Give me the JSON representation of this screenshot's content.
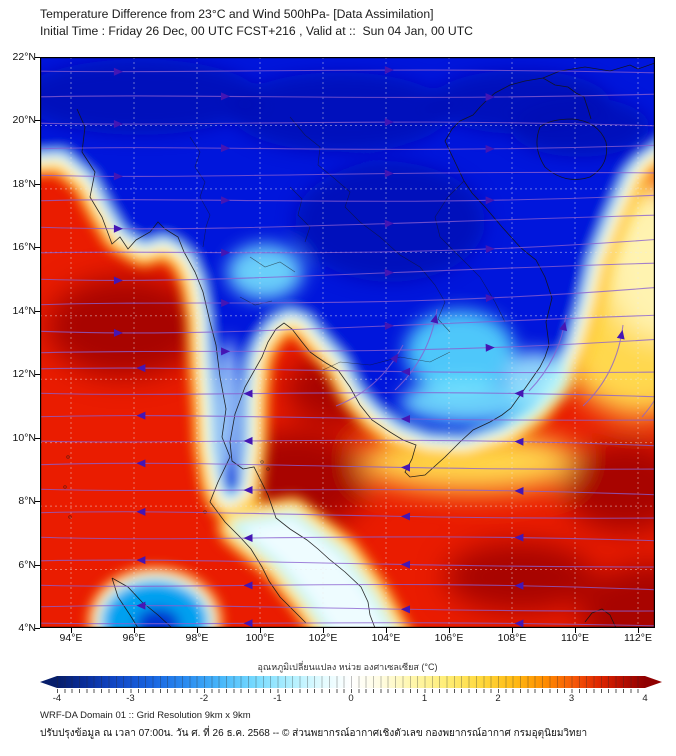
{
  "title_line1": "Temperature Difference from 23°C and Wind 500hPa- [Data Assimilation]",
  "title_line2": "Initial Time : Friday 26 Dec, 00 UTC FCST+216 , Valid at ::  Sun 04 Jan, 00 UTC",
  "map": {
    "lat_labels": [
      "22°N",
      "20°N",
      "18°N",
      "16°N",
      "14°N",
      "12°N",
      "10°N",
      "8°N",
      "6°N",
      "4°N"
    ],
    "lon_labels": [
      "94°E",
      "96°E",
      "98°E",
      "100°E",
      "102°E",
      "104°E",
      "106°E",
      "108°E",
      "110°E",
      "112°E"
    ]
  },
  "colorbar": {
    "label": "อุณหภูมิเปลี่ยนแปลง หน่วย องศาเซลเซียส (°C)",
    "ticks": [
      "-4",
      "-3",
      "-2",
      "-1",
      "0",
      "1",
      "2",
      "3",
      "4"
    ],
    "min_color": "#071e6b",
    "max_color": "#8f0000"
  },
  "footer_line1": "WRF-DA Domain 01 :: Grid Resolution 9km x 9km",
  "footer_line2": "ปรับปรุงข้อมูล ณ เวลา 07:00น. วัน ศ. ที่ 26 ธ.ค. 2568 -- © ส่วนพยากรณ์อากาศเชิงตัวเลข กองพยากรณ์อากาศ กรมอุตุนิยมวิทยา",
  "colors": {
    "warm_base": "#ea1c00",
    "warm_dark": "#9c0000",
    "cold_core": "#0016dc",
    "cold_navy": "#0009b4",
    "cold_cyan": "#5ce6ff",
    "rim_yellow": "#ffc31e",
    "rim_pale": "#fff29e",
    "rim_white": "#ffffff",
    "rim_cyan": "#86f0ff",
    "streamline": "#8a5fd0",
    "arrow": "#4416b4",
    "coast": "#151515",
    "grid": "rgba(235,235,235,0.45)"
  }
}
